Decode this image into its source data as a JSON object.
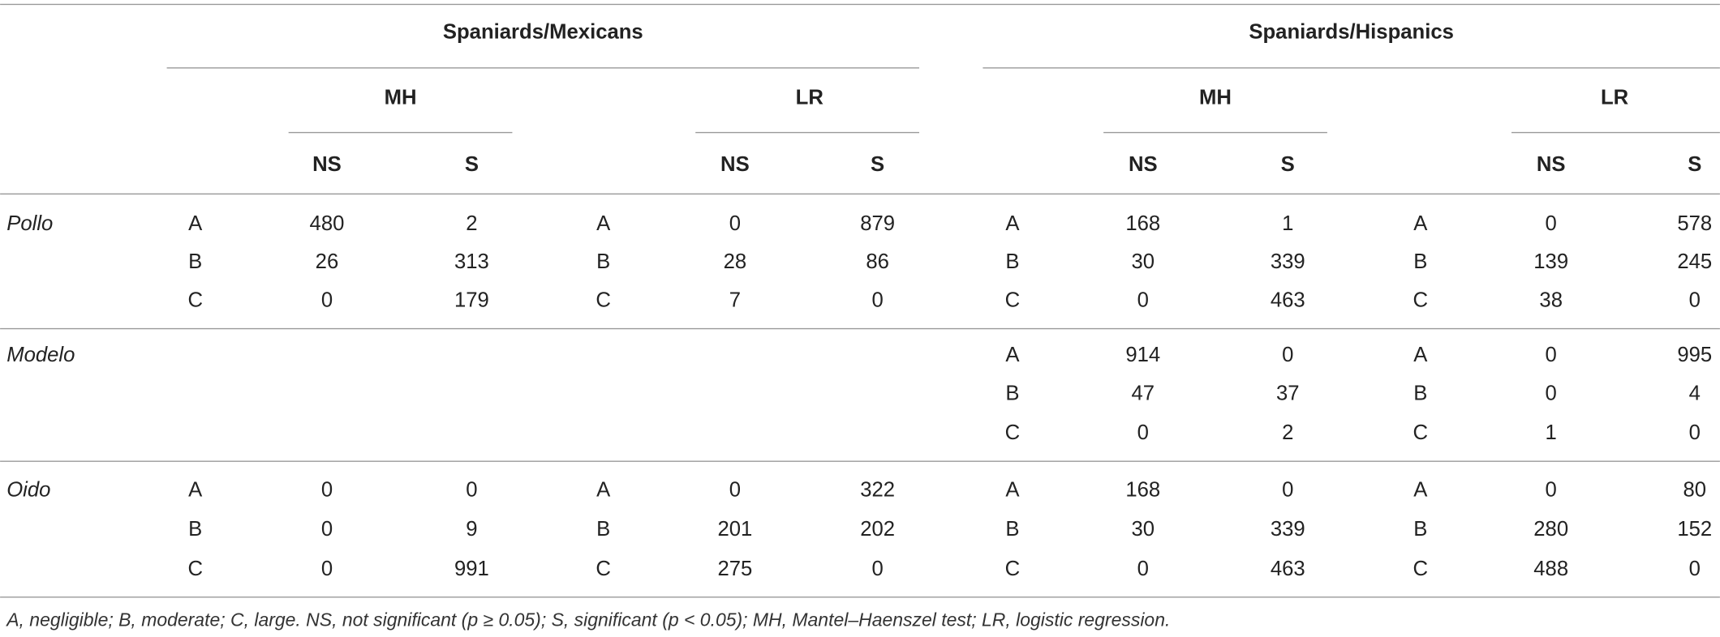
{
  "table": {
    "header": {
      "groups": [
        "Spaniards/Mexicans",
        "Spaniards/Hispanics"
      ],
      "methods": [
        "MH",
        "LR",
        "MH",
        "LR"
      ],
      "columns": [
        "NS",
        "S",
        "NS",
        "S",
        "NS",
        "S",
        "NS",
        "S"
      ]
    },
    "rows": [
      {
        "item": "Pollo",
        "lines": [
          [
            "A",
            480,
            2,
            "A",
            0,
            879,
            "A",
            168,
            1,
            "A",
            0,
            578
          ],
          [
            "B",
            26,
            313,
            "B",
            28,
            86,
            "B",
            30,
            339,
            "B",
            139,
            245
          ],
          [
            "C",
            0,
            179,
            "C",
            7,
            0,
            "C",
            0,
            463,
            "C",
            38,
            0
          ]
        ]
      },
      {
        "item": "Modelo",
        "lines": [
          [
            null,
            null,
            null,
            null,
            null,
            null,
            "A",
            914,
            0,
            "A",
            0,
            995
          ],
          [
            null,
            null,
            null,
            null,
            null,
            null,
            "B",
            47,
            37,
            "B",
            0,
            4
          ],
          [
            null,
            null,
            null,
            null,
            null,
            null,
            "C",
            0,
            2,
            "C",
            1,
            0
          ]
        ]
      },
      {
        "item": "Oido",
        "lines": [
          [
            "A",
            0,
            0,
            "A",
            0,
            322,
            "A",
            168,
            0,
            "A",
            0,
            80
          ],
          [
            "B",
            0,
            9,
            "B",
            201,
            202,
            "B",
            30,
            339,
            "B",
            280,
            152
          ],
          [
            "C",
            0,
            991,
            "C",
            275,
            0,
            "C",
            0,
            463,
            "C",
            488,
            0
          ]
        ]
      }
    ],
    "footnote": "A, negligible; B, moderate; C, large. NS, not significant (p ≥ 0.05); S, significant (p < 0.05); MH, Mantel–Haenszel test; LR, logistic regression."
  }
}
